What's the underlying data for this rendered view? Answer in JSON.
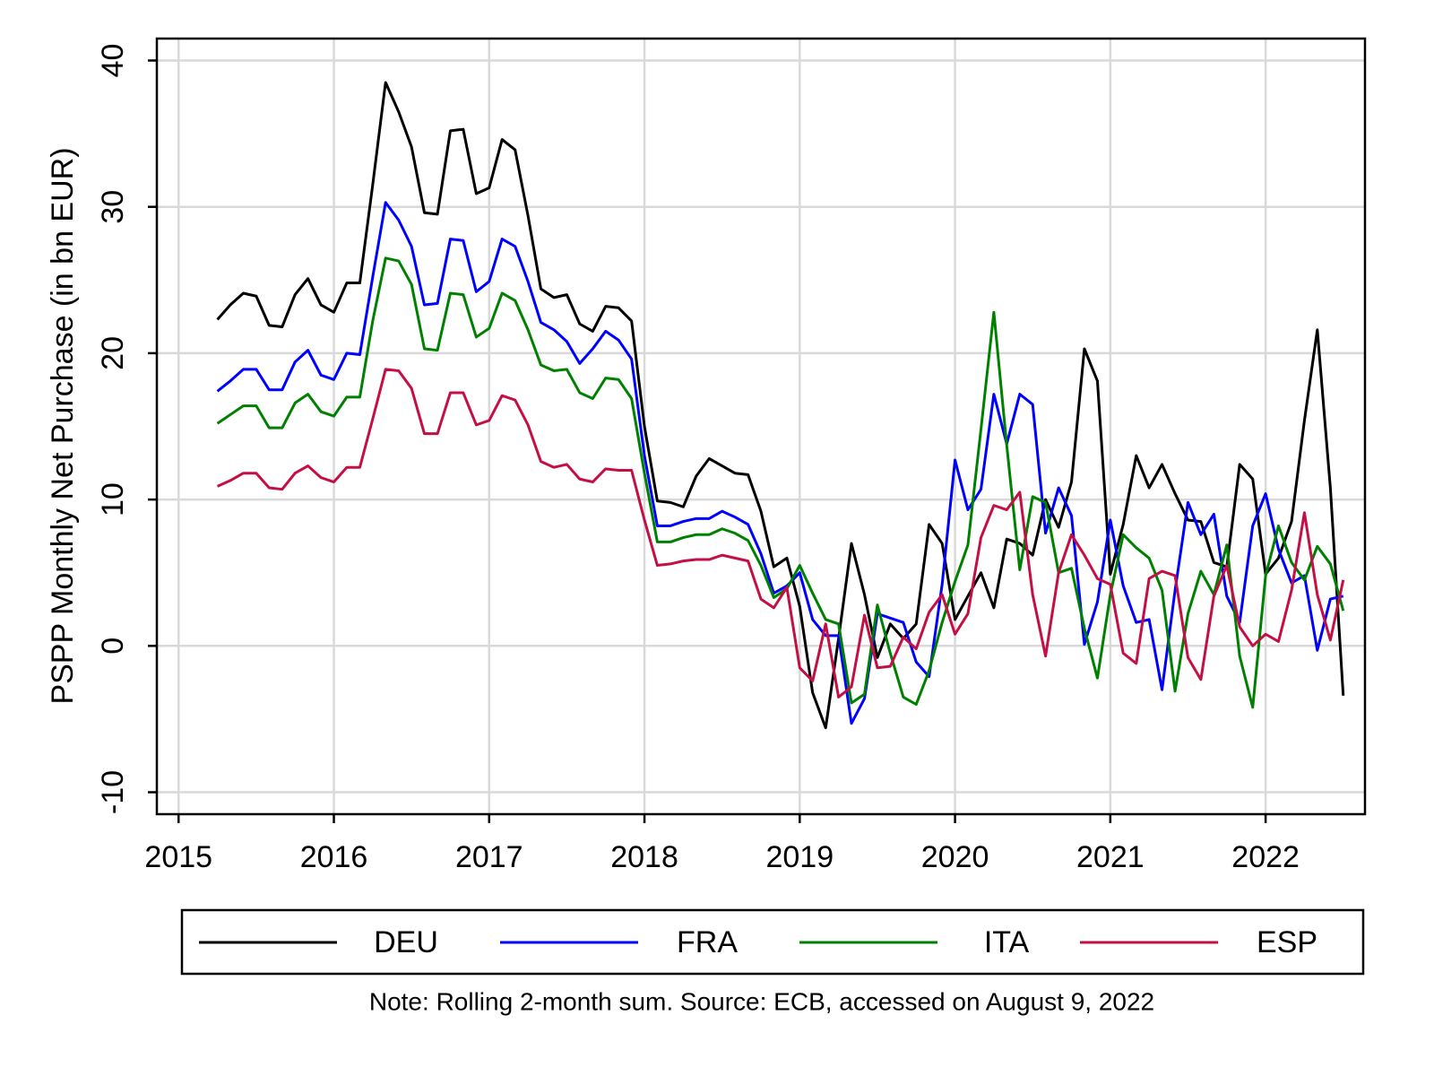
{
  "chart_data": {
    "type": "line",
    "y_label": "PSPP Monthly Net Purchase (in bn EUR)",
    "note": "Note: Rolling 2-month sum. Source: ECB, accessed on August 9, 2022",
    "xlim": [
      2014.86,
      2022.64
    ],
    "xticks": [
      2015,
      2016,
      2017,
      2018,
      2019,
      2020,
      2021,
      2022
    ],
    "ylim": [
      -11.5,
      41.5
    ],
    "yticks": [
      -10,
      0,
      10,
      20,
      30,
      40
    ],
    "grid": true,
    "legend": "bottom",
    "x": [
      2015.25,
      2015.333,
      2015.417,
      2015.5,
      2015.583,
      2015.667,
      2015.75,
      2015.833,
      2015.917,
      2016,
      2016.083,
      2016.167,
      2016.25,
      2016.333,
      2016.417,
      2016.5,
      2016.583,
      2016.667,
      2016.75,
      2016.833,
      2016.917,
      2017,
      2017.083,
      2017.167,
      2017.25,
      2017.333,
      2017.417,
      2017.5,
      2017.583,
      2017.667,
      2017.75,
      2017.833,
      2017.917,
      2018,
      2018.083,
      2018.167,
      2018.25,
      2018.333,
      2018.417,
      2018.5,
      2018.583,
      2018.667,
      2018.75,
      2018.833,
      2018.917,
      2019,
      2019.083,
      2019.167,
      2019.25,
      2019.333,
      2019.417,
      2019.5,
      2019.583,
      2019.667,
      2019.75,
      2019.833,
      2019.917,
      2020,
      2020.083,
      2020.167,
      2020.25,
      2020.333,
      2020.417,
      2020.5,
      2020.583,
      2020.667,
      2020.75,
      2020.833,
      2020.917,
      2021,
      2021.083,
      2021.167,
      2021.25,
      2021.333,
      2021.417,
      2021.5,
      2021.583,
      2021.667,
      2021.75,
      2021.833,
      2021.917,
      2022,
      2022.083,
      2022.167,
      2022.25,
      2022.333,
      2022.417,
      2022.5
    ],
    "series": [
      {
        "name": "DEU",
        "color": "#000000",
        "values": [
          22.3,
          23.3,
          24.1,
          23.9,
          21.9,
          21.8,
          24.0,
          25.1,
          23.3,
          22.8,
          24.8,
          24.8,
          31.5,
          38.5,
          36.5,
          34.1,
          29.6,
          29.5,
          35.2,
          35.3,
          30.9,
          31.3,
          34.6,
          33.9,
          29.4,
          24.4,
          23.8,
          24.0,
          22.0,
          21.5,
          23.2,
          23.1,
          22.2,
          15.0,
          9.9,
          9.8,
          9.5,
          11.6,
          12.8,
          12.3,
          11.8,
          11.7,
          9.2,
          5.4,
          6.0,
          2.7,
          -3.2,
          -5.6,
          0.5,
          7.0,
          3.5,
          -0.8,
          1.5,
          0.5,
          1.5,
          8.3,
          7.0,
          1.8,
          3.4,
          5.0,
          2.6,
          7.3,
          7.0,
          6.2,
          10.0,
          8.1,
          11.2,
          20.3,
          18.1,
          4.9,
          8.3,
          13.0,
          10.8,
          12.4,
          10.4,
          8.6,
          8.5,
          5.7,
          5.4,
          12.4,
          11.4,
          4.9,
          6.0,
          8.5,
          15.4,
          21.6,
          10.8,
          -3.4
        ]
      },
      {
        "name": "FRA",
        "color": "#0000ff",
        "values": [
          17.4,
          18.1,
          18.9,
          18.9,
          17.5,
          17.5,
          19.4,
          20.2,
          18.5,
          18.2,
          20.0,
          19.9,
          25.2,
          30.3,
          29.1,
          27.3,
          23.3,
          23.4,
          27.8,
          27.7,
          24.2,
          24.9,
          27.8,
          27.3,
          24.9,
          22.1,
          21.6,
          20.8,
          19.3,
          20.3,
          21.5,
          20.9,
          19.6,
          13.0,
          8.2,
          8.2,
          8.5,
          8.7,
          8.7,
          9.2,
          8.8,
          8.3,
          6.3,
          3.6,
          4.1,
          5.0,
          1.8,
          0.7,
          0.7,
          -5.3,
          -3.6,
          2.2,
          1.9,
          1.6,
          -1.1,
          -2.1,
          4.2,
          12.7,
          9.3,
          10.7,
          17.2,
          13.8,
          17.2,
          16.5,
          7.7,
          10.8,
          8.9,
          0.1,
          3.0,
          8.6,
          4.1,
          1.6,
          1.8,
          -3.0,
          3.8,
          9.8,
          7.6,
          9.0,
          3.4,
          1.6,
          8.2,
          10.4,
          6.6,
          4.3,
          4.8,
          -0.3,
          3.2,
          3.4
        ]
      },
      {
        "name": "ITA",
        "color": "#008000",
        "values": [
          15.2,
          15.8,
          16.4,
          16.4,
          14.9,
          14.9,
          16.6,
          17.2,
          16.0,
          15.7,
          17.0,
          17.0,
          22.2,
          26.5,
          26.3,
          24.7,
          20.3,
          20.2,
          24.1,
          24.0,
          21.1,
          21.7,
          24.1,
          23.6,
          21.6,
          19.2,
          18.8,
          18.9,
          17.3,
          16.9,
          18.3,
          18.2,
          16.9,
          11.8,
          7.1,
          7.1,
          7.4,
          7.6,
          7.6,
          8.0,
          7.7,
          7.2,
          5.5,
          3.3,
          3.9,
          5.5,
          3.6,
          1.8,
          1.5,
          -3.9,
          -3.3,
          2.8,
          -0.5,
          -3.5,
          -4.0,
          -1.7,
          1.6,
          4.4,
          6.9,
          14.8,
          22.8,
          13.7,
          5.2,
          10.2,
          9.8,
          5.0,
          5.3,
          1.2,
          -2.2,
          3.5,
          7.6,
          6.7,
          6.0,
          3.8,
          -3.1,
          2.2,
          5.1,
          3.5,
          6.9,
          -0.7,
          -4.2,
          4.8,
          8.2,
          5.7,
          4.5,
          6.8,
          5.6,
          2.4
        ]
      },
      {
        "name": "ESP",
        "color": "#c40f45",
        "values": [
          10.9,
          11.3,
          11.8,
          11.8,
          10.8,
          10.7,
          11.8,
          12.3,
          11.5,
          11.2,
          12.2,
          12.2,
          15.5,
          18.9,
          18.8,
          17.6,
          14.5,
          14.5,
          17.3,
          17.3,
          15.1,
          15.4,
          17.1,
          16.8,
          15.1,
          12.6,
          12.2,
          12.4,
          11.4,
          11.2,
          12.1,
          12.0,
          12.0,
          8.6,
          5.5,
          5.6,
          5.8,
          5.9,
          5.9,
          6.2,
          6.0,
          5.8,
          3.2,
          2.6,
          4.0,
          -1.5,
          -2.4,
          1.5,
          -3.5,
          -2.8,
          2.1,
          -1.5,
          -1.4,
          0.6,
          -0.2,
          2.3,
          3.5,
          0.8,
          2.2,
          7.4,
          9.6,
          9.3,
          10.5,
          3.5,
          -0.7,
          5.0,
          7.6,
          6.2,
          4.6,
          4.2,
          -0.5,
          -1.2,
          4.6,
          5.1,
          4.8,
          -0.8,
          -2.3,
          3.4,
          5.5,
          1.3,
          0.0,
          0.8,
          0.3,
          3.8,
          9.1,
          3.5,
          0.4,
          4.5
        ]
      }
    ]
  }
}
